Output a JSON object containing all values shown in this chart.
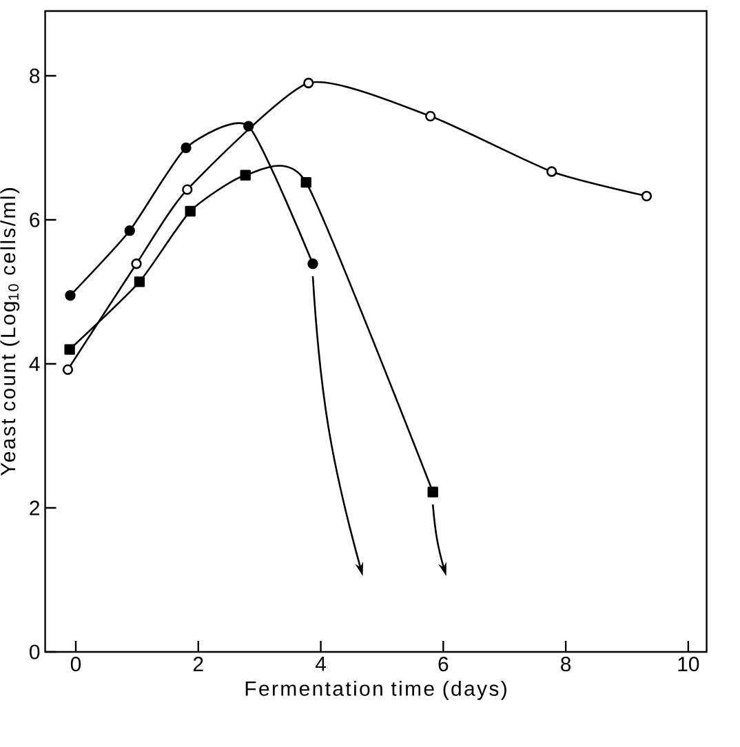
{
  "chart_data": {
    "type": "line",
    "xlabel": "Fermentation time (days)",
    "ylabel": "Yeast count (Log$_{10}$ cells/ml)",
    "xlim": [
      -0.5,
      10.3
    ],
    "ylim": [
      0,
      8.9
    ],
    "xticks": [
      0,
      2,
      4,
      6,
      8,
      10
    ],
    "yticks": [
      0,
      2,
      4,
      6,
      8
    ],
    "grid": false,
    "line_style": "solid",
    "series": [
      {
        "color": "#000000",
        "marker": "circle",
        "x": [
          -0.13,
          0.99,
          1.82,
          3.8,
          5.79,
          7.77,
          9.32
        ],
        "values": [
          3.92,
          5.39,
          6.42,
          7.9,
          7.44,
          6.67,
          6.33
        ]
      },
      {
        "color": "#000000",
        "marker": "circle",
        "x": [
          -0.09,
          0.88,
          1.8,
          2.82,
          3.87
        ],
        "values": [
          4.95,
          5.85,
          7.0,
          7.3,
          5.39
        ]
      },
      {
        "color": "#000000",
        "marker": "square",
        "x": [
          -0.1,
          1.04,
          1.87,
          2.77,
          3.76,
          5.83
        ],
        "values": [
          4.2,
          5.14,
          6.12,
          6.62,
          6.52,
          2.22
        ]
      }
    ]
  }
}
